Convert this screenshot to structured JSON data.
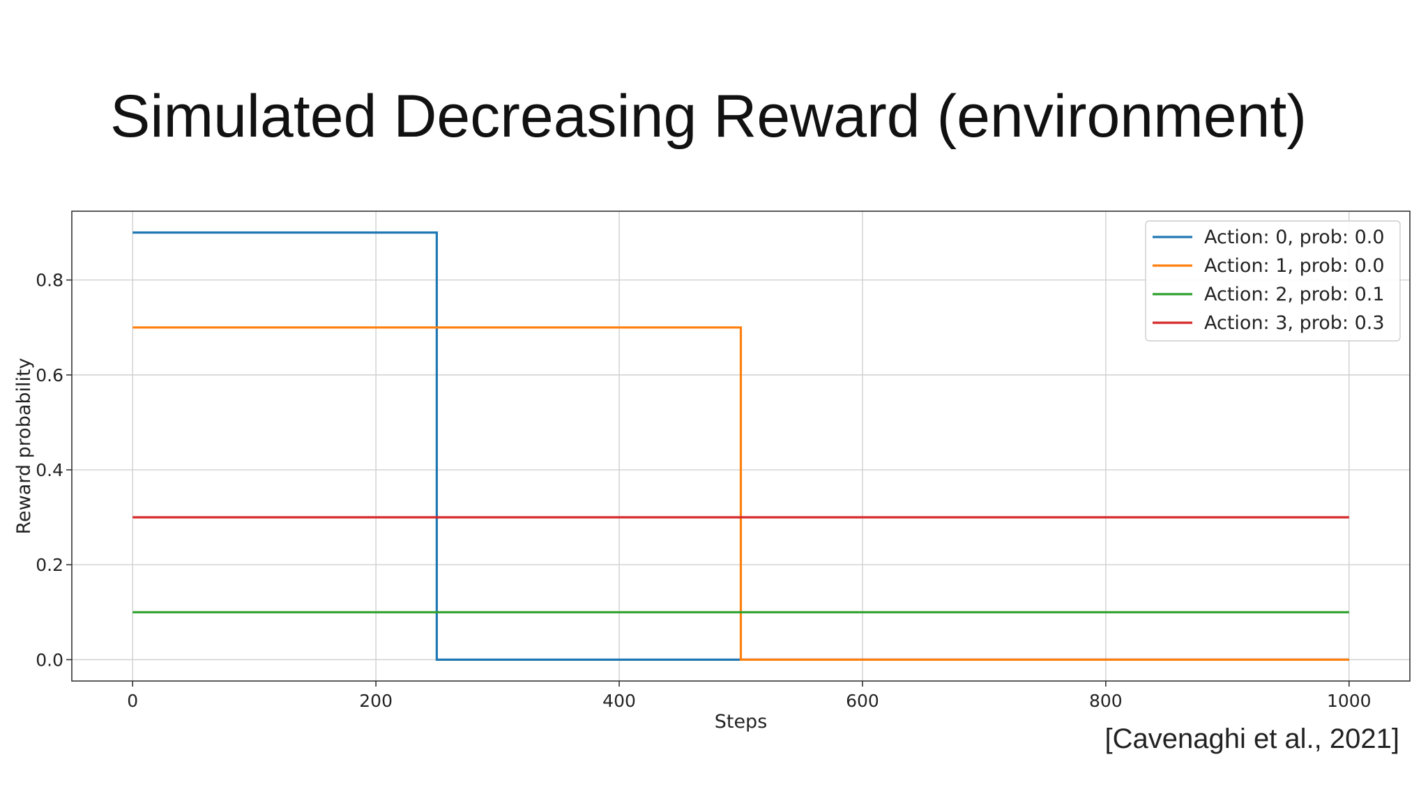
{
  "slide": {
    "title": "Simulated Decreasing Reward (environment)",
    "citation": "[Cavenaghi et al., 2021]"
  },
  "chart_data": {
    "type": "line",
    "title": "",
    "xlabel": "Steps",
    "ylabel": "Reward probability",
    "xlim": [
      -50,
      1050
    ],
    "ylim": [
      -0.045,
      0.945
    ],
    "xticks": [
      0,
      200,
      400,
      600,
      800,
      1000
    ],
    "xtick_labels": [
      "0",
      "200",
      "400",
      "600",
      "800",
      "1000"
    ],
    "yticks": [
      0.0,
      0.2,
      0.4,
      0.6,
      0.8
    ],
    "ytick_labels": [
      "0.0",
      "0.2",
      "0.4",
      "0.6",
      "0.8"
    ],
    "grid": true,
    "legend_position": "top-right",
    "series": [
      {
        "name": "Action: 0, prob: 0.0",
        "color": "#1f77b4",
        "x": [
          0,
          250,
          250,
          1000
        ],
        "y": [
          0.9,
          0.9,
          0.0,
          0.0
        ]
      },
      {
        "name": "Action: 1, prob: 0.0",
        "color": "#ff7f0e",
        "x": [
          0,
          500,
          500,
          1000
        ],
        "y": [
          0.7,
          0.7,
          0.0,
          0.0
        ]
      },
      {
        "name": "Action: 2, prob: 0.1",
        "color": "#2ca02c",
        "x": [
          0,
          1000
        ],
        "y": [
          0.1,
          0.1
        ]
      },
      {
        "name": "Action: 3, prob: 0.3",
        "color": "#d62728",
        "x": [
          0,
          1000
        ],
        "y": [
          0.3,
          0.3
        ]
      }
    ]
  }
}
